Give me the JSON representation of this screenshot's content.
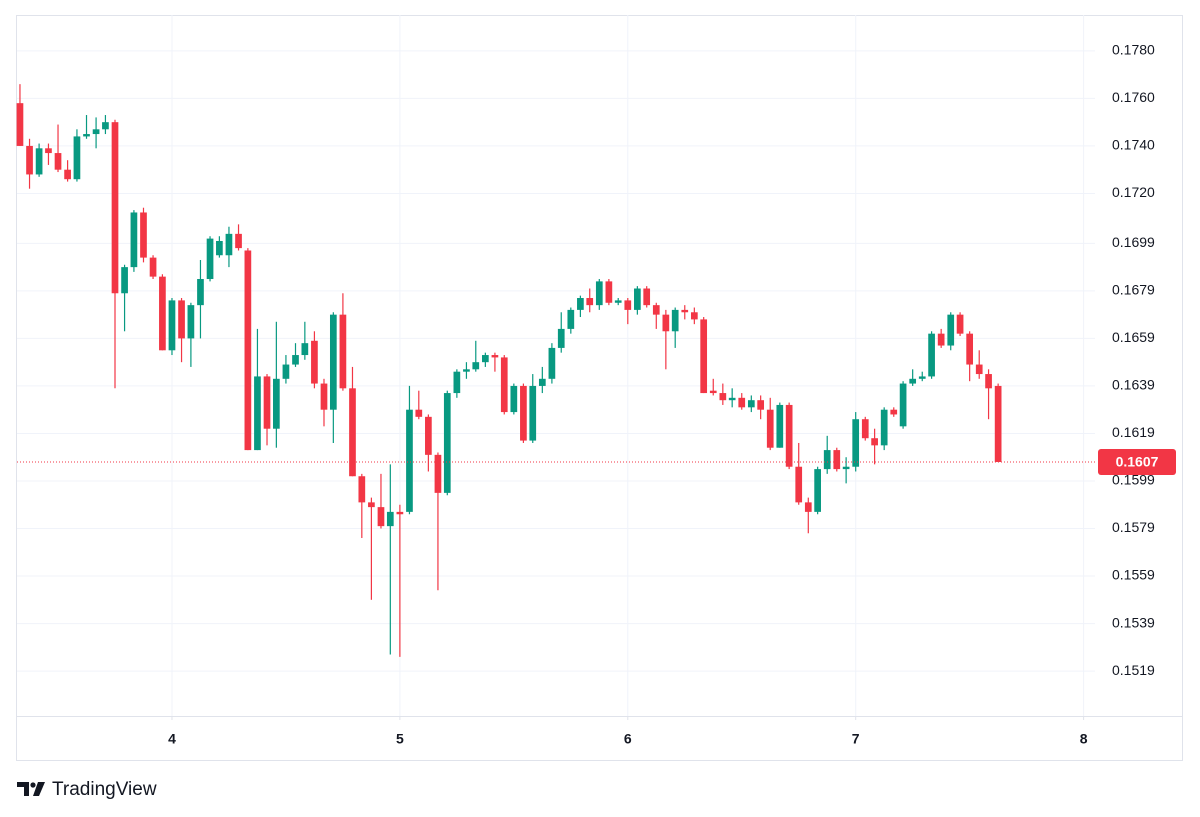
{
  "chart_data": {
    "type": "candlestick",
    "brand": "TradingView",
    "up_color": "#089981",
    "down_color": "#f23645",
    "grid": true,
    "x": [
      3.333,
      3.375,
      3.417,
      3.458,
      3.5,
      3.542,
      3.583,
      3.625,
      3.667,
      3.708,
      3.75,
      3.792,
      3.833,
      3.875,
      3.917,
      3.958,
      4,
      4.042,
      4.083,
      4.125,
      4.167,
      4.208,
      4.25,
      4.292,
      4.333,
      4.375,
      4.417,
      4.458,
      4.5,
      4.542,
      4.583,
      4.625,
      4.667,
      4.708,
      4.75,
      4.792,
      4.833,
      4.875,
      4.917,
      4.958,
      5,
      5.042,
      5.083,
      5.125,
      5.167,
      5.208,
      5.25,
      5.292,
      5.333,
      5.375,
      5.417,
      5.458,
      5.5,
      5.542,
      5.583,
      5.625,
      5.667,
      5.708,
      5.75,
      5.792,
      5.833,
      5.875,
      5.917,
      5.958,
      6,
      6.042,
      6.083,
      6.125,
      6.167,
      6.208,
      6.25,
      6.292,
      6.333,
      6.375,
      6.417,
      6.458,
      6.5,
      6.542,
      6.583,
      6.625,
      6.667,
      6.708,
      6.75,
      6.792,
      6.833,
      6.875,
      6.917,
      6.958,
      7,
      7.042,
      7.083,
      7.125,
      7.167,
      7.208,
      7.25,
      7.292,
      7.333,
      7.375,
      7.417,
      7.458,
      7.5,
      7.542,
      7.583,
      7.625
    ],
    "open": [
      0.1758,
      0.174,
      0.1728,
      0.1739,
      0.1737,
      0.173,
      0.1726,
      0.1744,
      0.1745,
      0.1747,
      0.175,
      0.1678,
      0.1689,
      0.1712,
      0.1693,
      0.1685,
      0.1654,
      0.1675,
      0.1659,
      0.1673,
      0.1684,
      0.1694,
      0.1694,
      0.1703,
      0.1696,
      0.1612,
      0.1643,
      0.1621,
      0.1642,
      0.1648,
      0.1652,
      0.1658,
      0.164,
      0.1629,
      0.1669,
      0.1638,
      0.1601,
      0.159,
      0.1588,
      0.158,
      0.1586,
      0.1586,
      0.1629,
      0.1626,
      0.161,
      0.1594,
      0.1636,
      0.1645,
      0.1646,
      0.1649,
      0.1652,
      0.1651,
      0.1628,
      0.1639,
      0.1616,
      0.1639,
      0.1642,
      0.1655,
      0.1663,
      0.1671,
      0.1676,
      0.1673,
      0.1683,
      0.1674,
      0.1675,
      0.1671,
      0.168,
      0.1673,
      0.1669,
      0.1662,
      0.1671,
      0.167,
      0.1667,
      0.1637,
      0.1636,
      0.1633,
      0.1634,
      0.163,
      0.1633,
      0.1629,
      0.1613,
      0.1631,
      0.1605,
      0.159,
      0.1586,
      0.1604,
      0.1612,
      0.1604,
      0.1605,
      0.1625,
      0.1617,
      0.1614,
      0.1629,
      0.1622,
      0.164,
      0.1642,
      0.1643,
      0.1661,
      0.1656,
      0.1669,
      0.1661,
      0.1648,
      0.1644,
      0.1639
    ],
    "high": [
      0.1766,
      0.1743,
      0.1741,
      0.1741,
      0.1749,
      0.1734,
      0.1747,
      0.1753,
      0.1752,
      0.1753,
      0.1751,
      0.169,
      0.1713,
      0.1714,
      0.1694,
      0.1686,
      0.1676,
      0.1676,
      0.1674,
      0.1692,
      0.1702,
      0.1702,
      0.1706,
      0.1707,
      0.1697,
      0.1663,
      0.1644,
      0.1666,
      0.1652,
      0.1657,
      0.1666,
      0.1662,
      0.1642,
      0.167,
      0.1678,
      0.1647,
      0.1602,
      0.1592,
      0.1602,
      0.1606,
      0.1589,
      0.1639,
      0.1637,
      0.1627,
      0.1611,
      0.1637,
      0.1646,
      0.1649,
      0.1658,
      0.1653,
      0.1653,
      0.1652,
      0.164,
      0.164,
      0.1644,
      0.1647,
      0.1657,
      0.167,
      0.1672,
      0.1677,
      0.168,
      0.1684,
      0.1684,
      0.1676,
      0.1676,
      0.1681,
      0.1681,
      0.1674,
      0.1671,
      0.1672,
      0.1673,
      0.1672,
      0.1668,
      0.1642,
      0.164,
      0.1638,
      0.1636,
      0.1635,
      0.1635,
      0.1634,
      0.1632,
      0.1632,
      0.1615,
      0.1592,
      0.1605,
      0.1618,
      0.1613,
      0.1609,
      0.1628,
      0.1626,
      0.1621,
      0.163,
      0.163,
      0.1641,
      0.1646,
      0.1645,
      0.1662,
      0.1663,
      0.167,
      0.167,
      0.1662,
      0.1654,
      0.1646,
      0.164
    ],
    "low": [
      0.174,
      0.1722,
      0.1727,
      0.1732,
      0.1729,
      0.1725,
      0.1725,
      0.1743,
      0.1739,
      0.1745,
      0.1638,
      0.1662,
      0.1687,
      0.1691,
      0.1684,
      0.1654,
      0.1652,
      0.1649,
      0.1647,
      0.1659,
      0.1683,
      0.1693,
      0.1689,
      0.1696,
      0.1612,
      0.1612,
      0.1614,
      0.1613,
      0.164,
      0.1647,
      0.165,
      0.1638,
      0.1622,
      0.1615,
      0.1637,
      0.1601,
      0.1575,
      0.1549,
      0.1579,
      0.1526,
      0.1525,
      0.1585,
      0.1625,
      0.1603,
      0.1553,
      0.1593,
      0.1634,
      0.1642,
      0.1645,
      0.1647,
      0.1645,
      0.1627,
      0.1627,
      0.1615,
      0.1615,
      0.1636,
      0.164,
      0.1653,
      0.1661,
      0.1668,
      0.167,
      0.1671,
      0.1673,
      0.1673,
      0.1665,
      0.1669,
      0.1672,
      0.1663,
      0.1646,
      0.1655,
      0.1667,
      0.1665,
      0.1636,
      0.1635,
      0.1631,
      0.163,
      0.1629,
      0.1628,
      0.1625,
      0.1612,
      0.1613,
      0.1604,
      0.1589,
      0.1577,
      0.1585,
      0.1602,
      0.1603,
      0.1598,
      0.1603,
      0.1616,
      0.1606,
      0.1612,
      0.1626,
      0.1621,
      0.1639,
      0.1641,
      0.1642,
      0.1655,
      0.1654,
      0.166,
      0.1641,
      0.1642,
      0.1625,
      0.1607
    ],
    "close": [
      0.174,
      0.1728,
      0.1739,
      0.1737,
      0.173,
      0.1726,
      0.1744,
      0.1745,
      0.1747,
      0.175,
      0.1678,
      0.1689,
      0.1712,
      0.1693,
      0.1685,
      0.1654,
      0.1675,
      0.1659,
      0.1673,
      0.1684,
      0.1701,
      0.17,
      0.1703,
      0.1697,
      0.1612,
      0.1643,
      0.1621,
      0.1642,
      0.1648,
      0.1652,
      0.1657,
      0.164,
      0.1629,
      0.1669,
      0.1638,
      0.1601,
      0.159,
      0.1588,
      0.158,
      0.1586,
      0.1585,
      0.1629,
      0.1626,
      0.161,
      0.1594,
      0.1636,
      0.1645,
      0.1646,
      0.1649,
      0.1652,
      0.1651,
      0.1628,
      0.1639,
      0.1616,
      0.1639,
      0.1642,
      0.1655,
      0.1663,
      0.1671,
      0.1676,
      0.1673,
      0.1683,
      0.1674,
      0.1675,
      0.1671,
      0.168,
      0.1673,
      0.1669,
      0.1662,
      0.1671,
      0.167,
      0.1667,
      0.1636,
      0.1636,
      0.1633,
      0.1634,
      0.163,
      0.1633,
      0.1629,
      0.1613,
      0.1631,
      0.1605,
      0.159,
      0.1586,
      0.1604,
      0.1612,
      0.1604,
      0.1605,
      0.1625,
      0.1617,
      0.1614,
      0.1629,
      0.1627,
      0.164,
      0.1642,
      0.1643,
      0.1661,
      0.1656,
      0.1669,
      0.1661,
      0.1648,
      0.1644,
      0.1638,
      0.1607
    ],
    "xlim": [
      3.32,
      8.05
    ],
    "xticks": [
      4,
      5,
      6,
      7,
      8
    ],
    "ylim": [
      0.15001,
      0.17951
    ],
    "yticks": [
      {
        "value": 0.178,
        "label": "0.1780"
      },
      {
        "value": 0.176,
        "label": "0.1760"
      },
      {
        "value": 0.174,
        "label": "0.1740"
      },
      {
        "value": 0.172,
        "label": "0.1720"
      },
      {
        "value": 0.1699,
        "label": "0.1699"
      },
      {
        "value": 0.1679,
        "label": "0.1679"
      },
      {
        "value": 0.1659,
        "label": "0.1659"
      },
      {
        "value": 0.1639,
        "label": "0.1639"
      },
      {
        "value": 0.1619,
        "label": "0.1619"
      },
      {
        "value": 0.1599,
        "label": "0.1599"
      },
      {
        "value": 0.1579,
        "label": "0.1579"
      },
      {
        "value": 0.1559,
        "label": "0.1559"
      },
      {
        "value": 0.1539,
        "label": "0.1539"
      },
      {
        "value": 0.1519,
        "label": "0.1519"
      }
    ],
    "last_price": {
      "value": 0.1607,
      "label": "0.1607"
    }
  }
}
